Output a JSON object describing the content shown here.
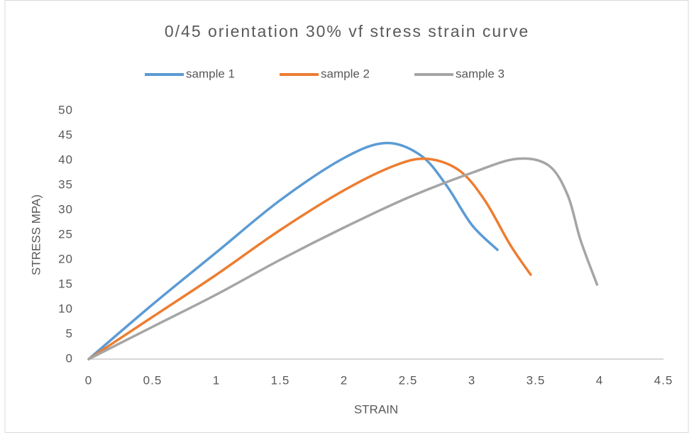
{
  "chart_data": {
    "type": "line",
    "title": "0/45 orientation 30% vf stress strain curve",
    "xlabel": "STRAIN",
    "ylabel": "STRESS  MPA)",
    "smooth": true,
    "grid": false,
    "series": [
      {
        "name": "sample 1",
        "color": "#5b9bd5",
        "x": [
          0,
          0.5,
          1,
          1.5,
          2,
          2.33,
          2.6,
          2.8,
          3.0,
          3.2
        ],
        "values": [
          0,
          11,
          21.5,
          32,
          40.5,
          43.5,
          41,
          35,
          27,
          22
        ]
      },
      {
        "name": "sample 2",
        "color": "#ed7d31",
        "x": [
          0,
          0.5,
          1,
          1.5,
          2,
          2.4,
          2.65,
          2.9,
          3.1,
          3.3,
          3.46
        ],
        "values": [
          0,
          8.5,
          17,
          26,
          34,
          39,
          40.3,
          38,
          32,
          23,
          17
        ]
      },
      {
        "name": "sample 3",
        "color": "#a5a5a5",
        "x": [
          0,
          0.5,
          1,
          1.5,
          2,
          2.5,
          3,
          3.35,
          3.6,
          3.75,
          3.85,
          3.98
        ],
        "values": [
          0,
          6.5,
          13,
          20,
          26.5,
          32.5,
          37.5,
          40.3,
          39,
          33,
          24,
          15
        ]
      }
    ],
    "xlim": [
      0,
      4.5
    ],
    "xticks": [
      0,
      0.5,
      1,
      1.5,
      2,
      2.5,
      3,
      3.5,
      4,
      4.5
    ],
    "ylim": [
      0,
      50
    ],
    "yticks": [
      0,
      5,
      10,
      15,
      20,
      25,
      30,
      35,
      40,
      45,
      50
    ]
  }
}
